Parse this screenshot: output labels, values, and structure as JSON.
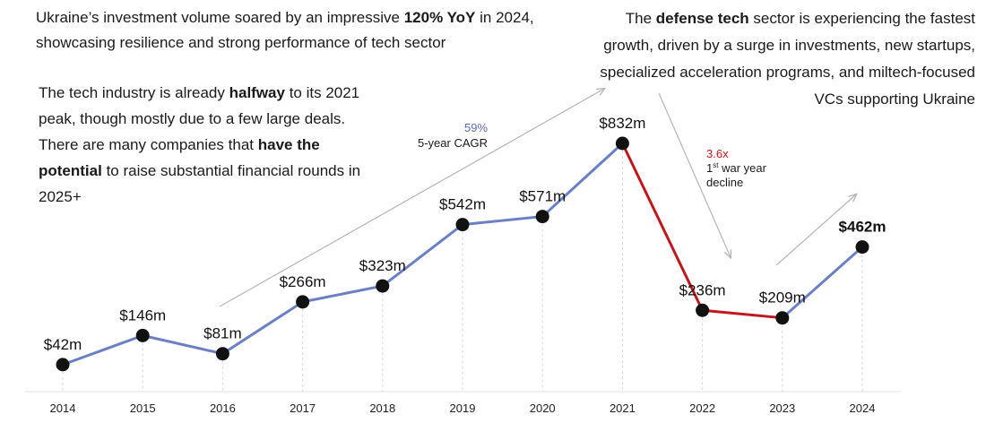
{
  "texts": {
    "top_left": {
      "a": "Ukraine’s investment volume soared by an impressive ",
      "b": "120% YoY",
      "c": " in 2024, showcasing resilience and strong performance of tech sector"
    },
    "top_right": {
      "a": "The ",
      "b": "defense tech",
      "c": " sector is experiencing the fastest growth, driven by a surge in investments, new startups, specialized acceleration programs, and miltech-focused VCs supporting Ukraine"
    },
    "mid_left": {
      "a": "The tech industry is already ",
      "b": "halfway",
      "c": " to its 2021 peak, though mostly due to a few large deals. There are many companies that ",
      "d": "have the potential",
      "e": " to raise substantial financial rounds in 2025+"
    }
  },
  "annotations": {
    "cagr_value": "59%",
    "cagr_label": "5-year CAGR",
    "decline_value": "3.6x",
    "decline_label_1": "1",
    "decline_label_sup": "st",
    "decline_label_2": " war year",
    "decline_label_3": "decline"
  },
  "colors": {
    "growth_line": "#6b7fc4",
    "decline_line": "#c0171c",
    "cagr_text": "#5a6fb8",
    "decline_text": "#c0171c",
    "arrow": "#b5b5b5",
    "marker": "#111111"
  },
  "chart_data": {
    "type": "line",
    "x": [
      "2014",
      "2015",
      "2016",
      "2017",
      "2018",
      "2019",
      "2020",
      "2021",
      "2022",
      "2023",
      "2024"
    ],
    "values": [
      42,
      146,
      81,
      266,
      323,
      542,
      571,
      832,
      236,
      209,
      462
    ],
    "labels": [
      "$42m",
      "$146m",
      "$81m",
      "$266m",
      "$323m",
      "$542m",
      "$571m",
      "$832m",
      "$236m",
      "$209m",
      "$462m"
    ],
    "highlighted_label_index": 10,
    "decline_segment": [
      "2021",
      "2022",
      "2023"
    ],
    "xlabel": "",
    "ylabel": "",
    "grid": false
  }
}
